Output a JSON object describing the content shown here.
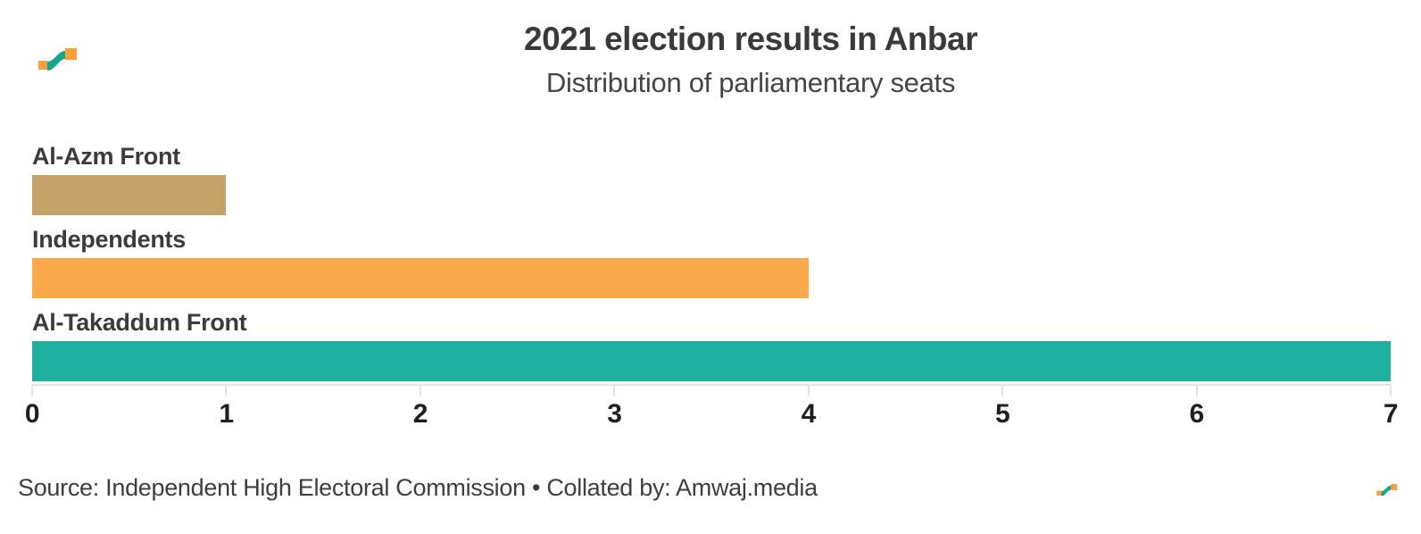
{
  "header": {
    "title": "2021 election results in Anbar",
    "subtitle": "Distribution of parliamentary seats"
  },
  "chart_data": {
    "type": "bar",
    "orientation": "horizontal",
    "title": "2021 election results in Anbar",
    "subtitle": "Distribution of parliamentary seats",
    "categories": [
      "Al-Azm Front",
      "Independents",
      "Al-Takaddum Front"
    ],
    "values": [
      1,
      4,
      7
    ],
    "bar_colors": [
      "#c5a368",
      "#fbaa4b",
      "#1db09e"
    ],
    "xlabel": "",
    "ylabel": "",
    "xlim": [
      0,
      7
    ],
    "axis_ticks": [
      "0",
      "1",
      "2",
      "3",
      "4",
      "5",
      "6",
      "7"
    ],
    "grid": false,
    "legend": false,
    "axis_line_color": "#e7e4e0"
  },
  "footer": {
    "source": "Source: Independent High Electoral Commission • Collated by: Amwaj.media"
  },
  "branding": {
    "logo_name": "amwaj-media-logo",
    "logo_orange": "#f9a137",
    "logo_teal": "#16a58f"
  }
}
